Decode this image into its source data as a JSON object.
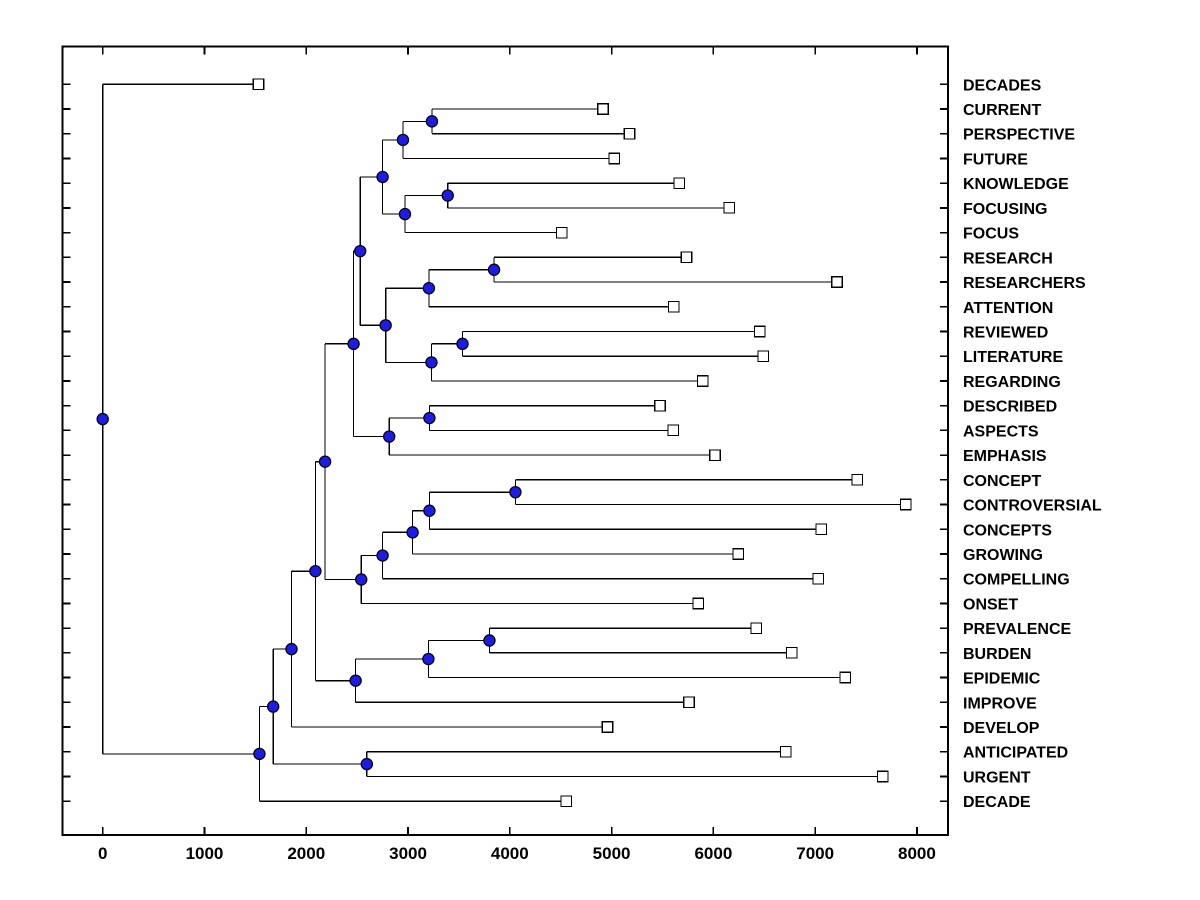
{
  "figure": {
    "background": "#ffffff",
    "frame_color": "#000000",
    "line_color": "#000000",
    "branch_node_fill": "#1c1ce6",
    "branch_node_stroke": "#000000",
    "leaf_marker_fill": "#ffffff",
    "leaf_marker_stroke": "#000000"
  },
  "chart_data": {
    "type": "dendrogram",
    "orientation": "root-left-leaves-right",
    "title": "",
    "xlabel": "",
    "ylabel": "",
    "xlim": [
      -390,
      8300
    ],
    "x_ticks": [
      0,
      1000,
      2000,
      3000,
      4000,
      5000,
      6000,
      7000,
      8000
    ],
    "grid": false,
    "leaf_order_top_to_bottom": [
      "DECADES",
      "CURRENT",
      "PERSPECTIVE",
      "FUTURE",
      "KNOWLEDGE",
      "FOCUSING",
      "FOCUS",
      "RESEARCH",
      "RESEARCHERS",
      "ATTENTION",
      "REVIEWED",
      "LITERATURE",
      "REGARDING",
      "DESCRIBED",
      "ASPECTS",
      "EMPHASIS",
      "CONCEPT",
      "CONTROVERSIAL",
      "CONCEPTS",
      "GROWING",
      "COMPELLING",
      "ONSET",
      "PREVALENCE",
      "BURDEN",
      "EPIDEMIC",
      "IMPROVE",
      "DEVELOP",
      "ANTICIPATED",
      "URGENT",
      "DECADE"
    ],
    "leaves": [
      {
        "label": "DECADES",
        "distance": 1530
      },
      {
        "label": "CURRENT",
        "distance": 4915
      },
      {
        "label": "PERSPECTIVE",
        "distance": 5175
      },
      {
        "label": "FUTURE",
        "distance": 5025
      },
      {
        "label": "KNOWLEDGE",
        "distance": 5665
      },
      {
        "label": "FOCUSING",
        "distance": 6155
      },
      {
        "label": "FOCUS",
        "distance": 4510
      },
      {
        "label": "RESEARCH",
        "distance": 5735
      },
      {
        "label": "RESEARCHERS",
        "distance": 7215
      },
      {
        "label": "ATTENTION",
        "distance": 5610
      },
      {
        "label": "REVIEWED",
        "distance": 6455
      },
      {
        "label": "LITERATURE",
        "distance": 6490
      },
      {
        "label": "REGARDING",
        "distance": 5895
      },
      {
        "label": "DESCRIBED",
        "distance": 5475
      },
      {
        "label": "ASPECTS",
        "distance": 5605
      },
      {
        "label": "EMPHASIS",
        "distance": 6015
      },
      {
        "label": "CONCEPT",
        "distance": 7415
      },
      {
        "label": "CONTROVERSIAL",
        "distance": 7890
      },
      {
        "label": "CONCEPTS",
        "distance": 7060
      },
      {
        "label": "GROWING",
        "distance": 6245
      },
      {
        "label": "COMPELLING",
        "distance": 7030
      },
      {
        "label": "ONSET",
        "distance": 5850
      },
      {
        "label": "PREVALENCE",
        "distance": 6420
      },
      {
        "label": "BURDEN",
        "distance": 6770
      },
      {
        "label": "EPIDEMIC",
        "distance": 7295
      },
      {
        "label": "IMPROVE",
        "distance": 5760
      },
      {
        "label": "DEVELOP",
        "distance": 4960
      },
      {
        "label": "ANTICIPATED",
        "distance": 6710
      },
      {
        "label": "URGENT",
        "distance": 7665
      },
      {
        "label": "DECADE",
        "distance": 4555
      }
    ],
    "internal_nodes": [
      {
        "id": "n1",
        "children": [
          "CURRENT",
          "PERSPECTIVE"
        ],
        "distance": 3235
      },
      {
        "id": "n2",
        "children": [
          "n1",
          "FUTURE"
        ],
        "distance": 2950
      },
      {
        "id": "n3",
        "children": [
          "KNOWLEDGE",
          "FOCUSING"
        ],
        "distance": 3390
      },
      {
        "id": "n4",
        "children": [
          "n3",
          "FOCUS"
        ],
        "distance": 2970
      },
      {
        "id": "n5",
        "children": [
          "n2",
          "n4"
        ],
        "distance": 2750
      },
      {
        "id": "n6",
        "children": [
          "RESEARCH",
          "RESEARCHERS"
        ],
        "distance": 3845
      },
      {
        "id": "n7",
        "children": [
          "n6",
          "ATTENTION"
        ],
        "distance": 3205
      },
      {
        "id": "n8",
        "children": [
          "REVIEWED",
          "LITERATURE"
        ],
        "distance": 3535
      },
      {
        "id": "n9",
        "children": [
          "n8",
          "REGARDING"
        ],
        "distance": 3230
      },
      {
        "id": "n10",
        "children": [
          "n7",
          "n9"
        ],
        "distance": 2780
      },
      {
        "id": "n11",
        "children": [
          "n5",
          "n10"
        ],
        "distance": 2530
      },
      {
        "id": "n12",
        "children": [
          "DESCRIBED",
          "ASPECTS"
        ],
        "distance": 3210
      },
      {
        "id": "n13",
        "children": [
          "n12",
          "EMPHASIS"
        ],
        "distance": 2815
      },
      {
        "id": "n14",
        "children": [
          "n11",
          "n13"
        ],
        "distance": 2465
      },
      {
        "id": "n15",
        "children": [
          "CONCEPT",
          "CONTROVERSIAL"
        ],
        "distance": 4055
      },
      {
        "id": "n16",
        "children": [
          "n15",
          "CONCEPTS"
        ],
        "distance": 3210
      },
      {
        "id": "n17",
        "children": [
          "n16",
          "GROWING"
        ],
        "distance": 3045
      },
      {
        "id": "n18",
        "children": [
          "n17",
          "COMPELLING"
        ],
        "distance": 2750
      },
      {
        "id": "n19",
        "children": [
          "n18",
          "ONSET"
        ],
        "distance": 2540
      },
      {
        "id": "n20",
        "children": [
          "n14",
          "n19"
        ],
        "distance": 2185
      },
      {
        "id": "n21",
        "children": [
          "PREVALENCE",
          "BURDEN"
        ],
        "distance": 3800
      },
      {
        "id": "n22",
        "children": [
          "n21",
          "EPIDEMIC"
        ],
        "distance": 3200
      },
      {
        "id": "n23",
        "children": [
          "n22",
          "IMPROVE"
        ],
        "distance": 2485
      },
      {
        "id": "n24",
        "children": [
          "n20",
          "n23"
        ],
        "distance": 2090
      },
      {
        "id": "n25",
        "children": [
          "n24",
          "DEVELOP"
        ],
        "distance": 1855
      },
      {
        "id": "n26",
        "children": [
          "ANTICIPATED",
          "URGENT"
        ],
        "distance": 2595
      },
      {
        "id": "n27",
        "children": [
          "n25",
          "n26"
        ],
        "distance": 1675
      },
      {
        "id": "n28",
        "children": [
          "n27",
          "DECADE"
        ],
        "distance": 1540
      },
      {
        "id": "n29",
        "children": [
          "DECADES",
          "n28"
        ],
        "distance": 0
      }
    ]
  }
}
